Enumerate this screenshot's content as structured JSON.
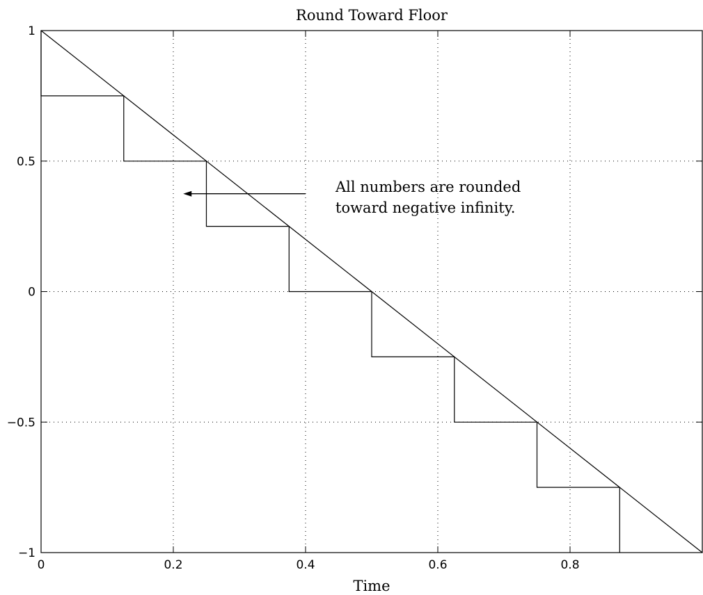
{
  "chart_data": {
    "type": "line",
    "title": "Round Toward Floor",
    "xlabel": "Time",
    "ylabel": "",
    "xlim": [
      0,
      1
    ],
    "ylim": [
      -1,
      1
    ],
    "grid": true,
    "xticks": [
      0,
      0.2,
      0.4,
      0.6,
      0.8,
      1
    ],
    "xtick_labels": [
      "0",
      "0.2",
      "0.4",
      "0.6",
      "0.8",
      ""
    ],
    "yticks": [
      -1,
      -0.5,
      0,
      0.5,
      1
    ],
    "ytick_labels": [
      "−1",
      "−0.5",
      "0",
      "0.5",
      "1"
    ],
    "series": [
      {
        "style": "line",
        "x": [
          0,
          1
        ],
        "y": [
          1,
          -1
        ]
      },
      {
        "style": "step",
        "x": [
          0,
          0,
          0.125,
          0.125,
          0.25,
          0.25,
          0.375,
          0.375,
          0.5,
          0.5,
          0.625,
          0.625,
          0.75,
          0.75,
          0.875,
          0.875
        ],
        "y": [
          1,
          0.75,
          0.75,
          0.5,
          0.5,
          0.25,
          0.25,
          0,
          0,
          -0.25,
          -0.25,
          -0.5,
          -0.5,
          -0.75,
          -0.75,
          -1
        ]
      }
    ],
    "annotation": {
      "lines": [
        "All numbers are rounded",
        "toward negative infinity."
      ],
      "arrow_from": [
        0.4,
        0.375
      ],
      "arrow_to": [
        0.215,
        0.375
      ]
    }
  }
}
